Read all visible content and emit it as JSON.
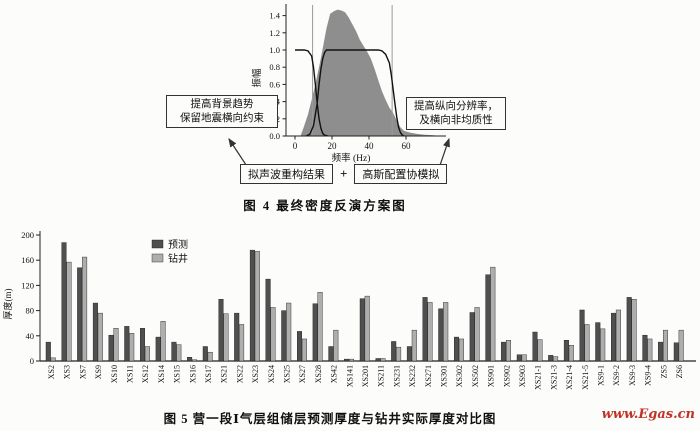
{
  "colors": {
    "bar_dark": "#4f4f4f",
    "bar_light": "#aeaeae",
    "spectrum_fill": "#8e8e8e",
    "vline": "#9a9a9a",
    "watermark_red": "#c03228"
  },
  "figure4": {
    "caption": "图 4  最终密度反演方案图",
    "left_box": {
      "line1": "提高背景趋势",
      "line2": "保留地震横向约束"
    },
    "right_box": {
      "line1": "提高纵向分辨率，",
      "line2": "及横向非均质性"
    },
    "flow": {
      "left": "拟声波重构结果",
      "plus": "+",
      "right": "高斯配置协模拟"
    }
  },
  "figure5": {
    "caption": "图 5  营一段Ⅰ气层组储层预测厚度与钻井实际厚度对比图",
    "watermark": "www.Egas.cn"
  },
  "chart_data": [
    {
      "type": "area",
      "title": "最终密度反演方案图",
      "xlabel": "频率 (Hz)",
      "ylabel": "振幅",
      "xlim": [
        0,
        80
      ],
      "ylim": [
        0,
        1.5
      ],
      "xticks": [
        0,
        20,
        40,
        60
      ],
      "yticks": [
        0,
        0.2,
        0.4,
        0.6,
        0.8,
        1.0,
        1.2,
        1.4
      ],
      "vlines": [
        9.5,
        52.5
      ],
      "grid": false,
      "series": [
        {
          "name": "seismic-amplitude-spectrum",
          "style": "filled-gray",
          "points": [
            [
              3,
              0
            ],
            [
              5,
              0.12
            ],
            [
              7,
              0.25
            ],
            [
              9,
              0.42
            ],
            [
              11,
              0.6
            ],
            [
              13,
              0.8
            ],
            [
              15,
              1.02
            ],
            [
              17,
              1.25
            ],
            [
              19,
              1.42
            ],
            [
              21,
              1.45
            ],
            [
              23,
              1.47
            ],
            [
              25,
              1.46
            ],
            [
              27,
              1.44
            ],
            [
              29,
              1.38
            ],
            [
              31,
              1.3
            ],
            [
              33,
              1.22
            ],
            [
              35,
              1.12
            ],
            [
              37,
              1.05
            ],
            [
              39,
              0.98
            ],
            [
              41,
              0.9
            ],
            [
              43,
              0.78
            ],
            [
              45,
              0.65
            ],
            [
              47,
              0.52
            ],
            [
              49,
              0.42
            ],
            [
              51,
              0.33
            ],
            [
              53,
              0.27
            ],
            [
              55,
              0.18
            ],
            [
              57,
              0.1
            ],
            [
              59,
              0.06
            ],
            [
              62,
              0.04
            ],
            [
              66,
              0.025
            ],
            [
              70,
              0.015
            ],
            [
              75,
              0.008
            ],
            [
              78,
              0
            ]
          ]
        },
        {
          "name": "lowpass-filter-curve",
          "style": "black-line",
          "points": [
            [
              0,
              1.0
            ],
            [
              5,
              1.0
            ],
            [
              7,
              0.99
            ],
            [
              9,
              0.93
            ],
            [
              10,
              0.8
            ],
            [
              11,
              0.6
            ],
            [
              12,
              0.38
            ],
            [
              13,
              0.2
            ],
            [
              14,
              0.09
            ],
            [
              15,
              0.03
            ],
            [
              16,
              0.01
            ],
            [
              18,
              0
            ]
          ]
        },
        {
          "name": "bandpass-filter-curve",
          "style": "black-line",
          "points": [
            [
              6,
              0
            ],
            [
              8,
              0.02
            ],
            [
              10,
              0.12
            ],
            [
              12,
              0.38
            ],
            [
              13,
              0.6
            ],
            [
              14,
              0.78
            ],
            [
              15,
              0.9
            ],
            [
              16,
              0.97
            ],
            [
              17,
              1.0
            ],
            [
              45,
              1.0
            ],
            [
              47,
              0.99
            ],
            [
              49,
              0.95
            ],
            [
              51,
              0.85
            ],
            [
              52,
              0.72
            ],
            [
              53,
              0.55
            ],
            [
              54,
              0.38
            ],
            [
              55,
              0.22
            ],
            [
              56,
              0.1
            ],
            [
              57,
              0.04
            ],
            [
              58,
              0.01
            ],
            [
              59,
              0
            ]
          ]
        }
      ]
    },
    {
      "type": "bar",
      "title": "营一段Ⅰ气层组储层预测厚度与钻井实际厚度对比图",
      "ylabel": "厚度(m)",
      "ylim": [
        0,
        200
      ],
      "yticks": [
        0,
        40,
        80,
        120,
        160,
        200
      ],
      "legend_position": "upper-left-inside",
      "categories": [
        "XS2",
        "XS3",
        "XS7",
        "XS9",
        "XS10",
        "XS11",
        "XS12",
        "XS14",
        "XS15",
        "XS16",
        "XS17",
        "XS21",
        "XS22",
        "XS23",
        "XS24",
        "XS25",
        "XS27",
        "XS28",
        "XS42",
        "XS141",
        "XS201",
        "XS211",
        "XS231",
        "XS232",
        "XS271",
        "XS301",
        "XS302",
        "XS502",
        "XS901",
        "XS902",
        "XS903",
        "XS21-1",
        "XS21-3",
        "XS21-4",
        "XS21-5",
        "XS9-1",
        "XS9-2",
        "XS9-3",
        "XS9-4",
        "ZS5",
        "ZS6"
      ],
      "series": [
        {
          "name": "预测",
          "color": "#4f4f4f",
          "values": [
            30,
            188,
            148,
            92,
            41,
            55,
            52,
            38,
            30,
            6,
            23,
            98,
            76,
            176,
            130,
            80,
            47,
            91,
            23,
            3,
            99,
            4,
            31,
            23,
            101,
            83,
            38,
            77,
            137,
            30,
            10,
            46,
            9,
            33,
            81,
            61,
            76,
            101,
            41,
            30,
            29
          ]
        },
        {
          "name": "钻井",
          "color": "#aeaeae",
          "values": [
            5,
            157,
            165,
            76,
            52,
            44,
            23,
            63,
            26,
            2,
            14,
            75,
            58,
            174,
            85,
            92,
            35,
            109,
            49,
            3,
            103,
            4,
            22,
            49,
            93,
            93,
            35,
            85,
            149,
            33,
            10,
            34,
            7,
            25,
            58,
            51,
            81,
            98,
            35,
            49,
            49
          ]
        }
      ]
    }
  ]
}
